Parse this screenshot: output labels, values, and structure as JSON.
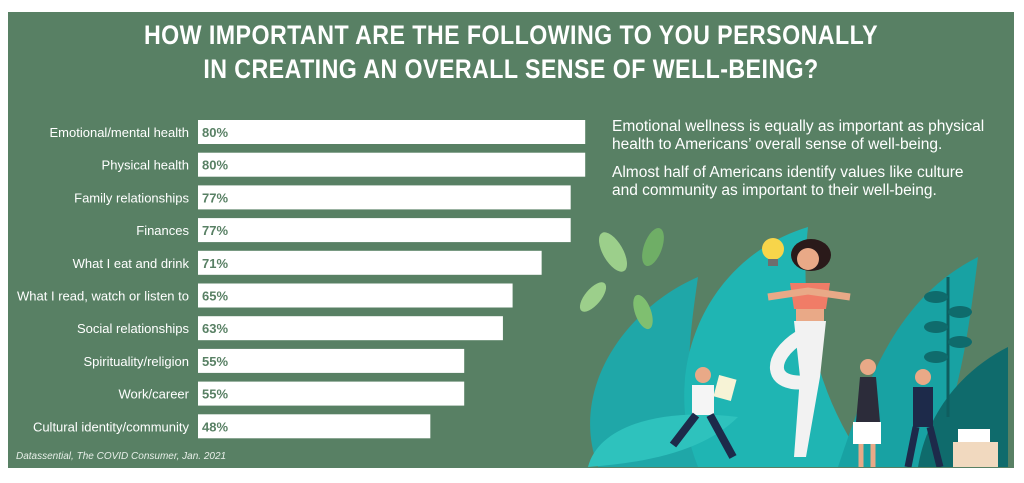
{
  "header": {
    "title_line1": "HOW IMPORTANT ARE THE FOLLOWING TO YOU PERSONALLY",
    "title_line2": "IN CREATING AN OVERALL SENSE OF WELL-BEING?"
  },
  "notes": {
    "note1": "Emotional wellness is equally as important as physical health to Americans’ overall sense of well-being.",
    "note2": "Almost half of Americans identify values like culture and community as important to their well-being."
  },
  "source": "Datassential, The COVID Consumer, Jan. 2021",
  "colors": {
    "background": "#588064",
    "bar": "#ffffff",
    "value_text": "#588064",
    "label_text": "#ffffff"
  },
  "chart_data": {
    "type": "bar",
    "orientation": "horizontal",
    "title": "HOW IMPORTANT ARE THE FOLLOWING TO YOU PERSONALLY IN CREATING AN OVERALL SENSE OF WELL-BEING?",
    "xlabel": "",
    "ylabel": "",
    "xlim": [
      0,
      100
    ],
    "grid": false,
    "categories": [
      "Emotional/mental health",
      "Physical health",
      "Family relationships",
      "Finances",
      "What I eat and drink",
      "What I read, watch or listen to",
      "Social relationships",
      "Spirituality/religion",
      "Work/career",
      "Cultural identity/community"
    ],
    "values": [
      80,
      80,
      77,
      77,
      71,
      65,
      63,
      55,
      55,
      48
    ],
    "value_labels": [
      "80%",
      "80%",
      "77%",
      "77%",
      "71%",
      "65%",
      "63%",
      "55%",
      "55%",
      "48%"
    ]
  }
}
